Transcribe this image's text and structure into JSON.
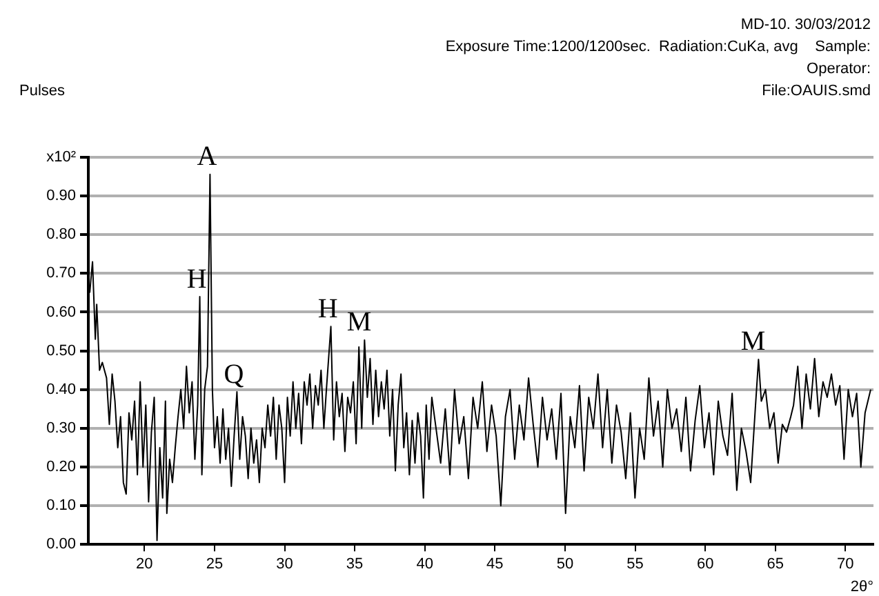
{
  "chart_data": {
    "type": "line",
    "title": "MD-10.  30/03/2012",
    "xlabel": "2θ°",
    "ylabel": "Pulses",
    "color": "#000000",
    "marker": "none",
    "grid": "y",
    "xlim": [
      16,
      72
    ],
    "ylim": [
      0,
      1.0
    ],
    "xticks": [
      20,
      25,
      30,
      35,
      40,
      45,
      50,
      55,
      60,
      65,
      70
    ],
    "yticks": [
      {
        "value": 0,
        "label": "0.00"
      },
      {
        "value": 0.1,
        "label": "0.10"
      },
      {
        "value": 0.2,
        "label": "0.20"
      },
      {
        "value": 0.3,
        "label": "0.30"
      },
      {
        "value": 0.4,
        "label": "0.40"
      },
      {
        "value": 0.5,
        "label": "0.50"
      },
      {
        "value": 0.6,
        "label": "0.60"
      },
      {
        "value": 0.7,
        "label": "0.70"
      },
      {
        "value": 0.8,
        "label": "0.80"
      },
      {
        "value": 0.9,
        "label": "0.90"
      },
      {
        "value": 1.0,
        "label": "x10²"
      }
    ],
    "annotations": [
      "Exposure Time:1200/1200sec.  Radiation:CuKa, avg    Sample:",
      "Operator:",
      "File:OAUIS.smd",
      {
        "text": "A",
        "x": 24.68,
        "y": 0.956
      },
      {
        "text": "H",
        "x": 23.95,
        "y": 0.64
      },
      {
        "text": "Q",
        "x": 26.6,
        "y": 0.394
      },
      {
        "text": "H",
        "x": 33.3,
        "y": 0.563
      },
      {
        "text": "M",
        "x": 35.7,
        "y": 0.528
      },
      {
        "text": "M",
        "x": 63.8,
        "y": 0.478
      }
    ],
    "x": [
      16.1,
      16.3,
      16.5,
      16.6,
      16.8,
      17.0,
      17.3,
      17.5,
      17.7,
      17.9,
      18.1,
      18.3,
      18.5,
      18.7,
      18.9,
      19.1,
      19.3,
      19.5,
      19.7,
      19.9,
      20.1,
      20.3,
      20.5,
      20.7,
      20.9,
      21.1,
      21.3,
      21.5,
      21.6,
      21.8,
      22.0,
      22.2,
      22.4,
      22.6,
      22.8,
      23.0,
      23.2,
      23.4,
      23.6,
      23.8,
      23.95,
      24.1,
      24.3,
      24.5,
      24.68,
      24.85,
      25.0,
      25.2,
      25.4,
      25.6,
      25.8,
      26.0,
      26.2,
      26.4,
      26.6,
      26.8,
      27.0,
      27.2,
      27.4,
      27.6,
      27.8,
      28.0,
      28.2,
      28.4,
      28.6,
      28.8,
      29.0,
      29.2,
      29.4,
      29.6,
      29.8,
      30.0,
      30.2,
      30.4,
      30.6,
      30.8,
      31.0,
      31.2,
      31.4,
      31.6,
      31.8,
      32.0,
      32.2,
      32.4,
      32.6,
      32.8,
      33.0,
      33.3,
      33.5,
      33.7,
      33.9,
      34.1,
      34.3,
      34.5,
      34.7,
      34.9,
      35.1,
      35.3,
      35.5,
      35.7,
      35.9,
      36.1,
      36.3,
      36.5,
      36.7,
      36.9,
      37.1,
      37.3,
      37.5,
      37.7,
      37.9,
      38.1,
      38.3,
      38.5,
      38.7,
      38.9,
      39.1,
      39.3,
      39.5,
      39.7,
      39.9,
      40.1,
      40.3,
      40.5,
      40.8,
      41.13,
      41.46,
      41.79,
      42.12,
      42.45,
      42.78,
      43.11,
      43.44,
      43.77,
      44.1,
      44.43,
      44.76,
      45.09,
      45.42,
      45.75,
      46.08,
      46.41,
      46.74,
      47.07,
      47.4,
      47.73,
      48.06,
      48.39,
      48.72,
      49.05,
      49.38,
      49.71,
      50.04,
      50.37,
      50.7,
      51.03,
      51.36,
      51.69,
      52.02,
      52.35,
      52.68,
      53.01,
      53.34,
      53.67,
      54.0,
      54.33,
      54.66,
      54.99,
      55.32,
      55.65,
      55.98,
      56.31,
      56.64,
      56.97,
      57.3,
      57.63,
      57.96,
      58.29,
      58.62,
      58.95,
      59.28,
      59.61,
      59.94,
      60.27,
      60.6,
      60.93,
      61.26,
      61.59,
      61.92,
      62.25,
      62.58,
      62.91,
      63.24,
      63.57,
      63.8,
      64.0,
      64.3,
      64.6,
      64.9,
      65.2,
      65.5,
      65.8,
      66.1,
      66.3,
      66.6,
      66.9,
      67.2,
      67.5,
      67.8,
      68.1,
      68.4,
      68.7,
      69.0,
      69.3,
      69.6,
      69.9,
      70.2,
      70.5,
      70.8,
      71.1,
      71.4,
      71.8
    ],
    "values": [
      0.65,
      0.73,
      0.53,
      0.62,
      0.45,
      0.47,
      0.43,
      0.31,
      0.44,
      0.37,
      0.25,
      0.33,
      0.16,
      0.13,
      0.34,
      0.27,
      0.37,
      0.18,
      0.42,
      0.2,
      0.36,
      0.11,
      0.29,
      0.38,
      0.01,
      0.25,
      0.12,
      0.37,
      0.08,
      0.22,
      0.16,
      0.25,
      0.33,
      0.4,
      0.3,
      0.46,
      0.34,
      0.42,
      0.22,
      0.36,
      0.64,
      0.18,
      0.4,
      0.46,
      0.956,
      0.4,
      0.25,
      0.33,
      0.21,
      0.35,
      0.22,
      0.3,
      0.15,
      0.28,
      0.394,
      0.22,
      0.33,
      0.28,
      0.17,
      0.3,
      0.21,
      0.27,
      0.16,
      0.3,
      0.25,
      0.36,
      0.28,
      0.38,
      0.22,
      0.36,
      0.3,
      0.16,
      0.38,
      0.28,
      0.42,
      0.3,
      0.39,
      0.26,
      0.42,
      0.36,
      0.44,
      0.3,
      0.41,
      0.36,
      0.45,
      0.3,
      0.41,
      0.563,
      0.27,
      0.42,
      0.33,
      0.39,
      0.24,
      0.38,
      0.34,
      0.42,
      0.26,
      0.51,
      0.3,
      0.528,
      0.38,
      0.48,
      0.31,
      0.45,
      0.33,
      0.42,
      0.35,
      0.45,
      0.28,
      0.4,
      0.19,
      0.36,
      0.44,
      0.25,
      0.34,
      0.18,
      0.32,
      0.21,
      0.34,
      0.28,
      0.12,
      0.36,
      0.22,
      0.38,
      0.3,
      0.21,
      0.35,
      0.18,
      0.4,
      0.26,
      0.33,
      0.17,
      0.38,
      0.3,
      0.42,
      0.24,
      0.36,
      0.28,
      0.1,
      0.33,
      0.4,
      0.22,
      0.36,
      0.27,
      0.43,
      0.31,
      0.2,
      0.38,
      0.27,
      0.35,
      0.22,
      0.39,
      0.08,
      0.33,
      0.25,
      0.41,
      0.19,
      0.38,
      0.3,
      0.44,
      0.25,
      0.4,
      0.21,
      0.36,
      0.29,
      0.17,
      0.34,
      0.12,
      0.3,
      0.22,
      0.43,
      0.28,
      0.37,
      0.2,
      0.4,
      0.3,
      0.35,
      0.24,
      0.38,
      0.19,
      0.32,
      0.41,
      0.25,
      0.34,
      0.18,
      0.37,
      0.28,
      0.23,
      0.39,
      0.14,
      0.3,
      0.24,
      0.16,
      0.35,
      0.478,
      0.37,
      0.4,
      0.3,
      0.34,
      0.21,
      0.31,
      0.29,
      0.33,
      0.36,
      0.46,
      0.3,
      0.44,
      0.35,
      0.48,
      0.33,
      0.42,
      0.38,
      0.44,
      0.36,
      0.41,
      0.22,
      0.4,
      0.33,
      0.39,
      0.2,
      0.34,
      0.4
    ]
  }
}
